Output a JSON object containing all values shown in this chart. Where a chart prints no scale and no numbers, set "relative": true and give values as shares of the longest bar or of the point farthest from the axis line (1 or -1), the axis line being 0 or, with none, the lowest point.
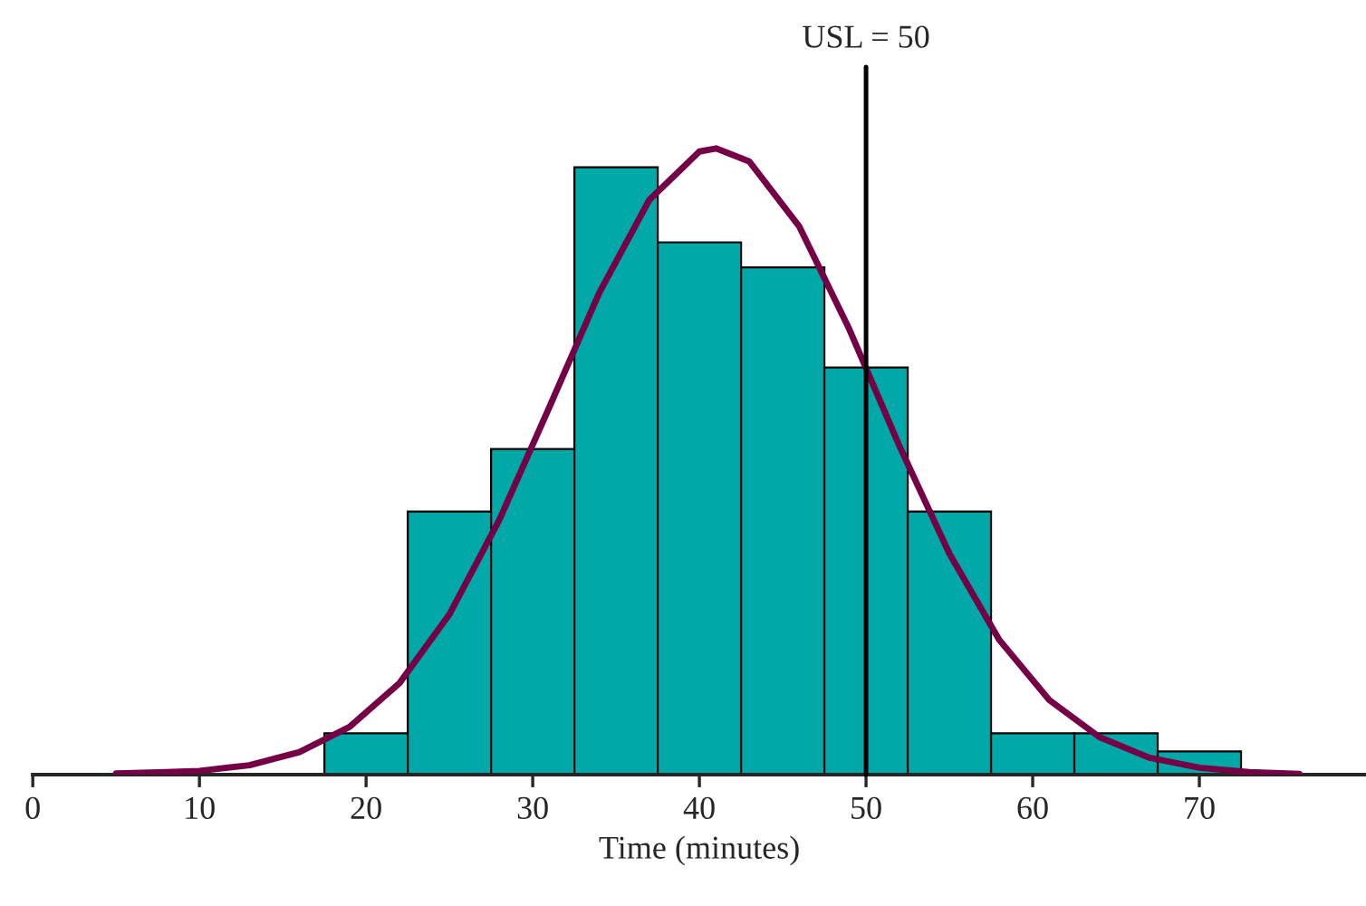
{
  "chart_data": {
    "type": "histogram",
    "relative": true,
    "xlabel": "Time (minutes)",
    "bins": [
      17.5,
      22.5,
      27.5,
      32.5,
      37.5,
      42.5,
      47.5,
      52.5,
      57.5,
      62.5,
      67.5,
      72.5
    ],
    "values": [
      0.066,
      0.42,
      0.52,
      0.97,
      0.85,
      0.81,
      0.65,
      0.42,
      0.066,
      0.066,
      0.037
    ],
    "color": "#00a8a8",
    "series": [
      {
        "type": "line",
        "color": "#750046",
        "x": [
          5,
          8,
          10,
          13,
          16,
          19,
          22,
          25,
          28,
          31,
          34,
          37,
          40,
          41,
          43,
          46,
          49,
          52,
          55,
          58,
          61,
          64,
          67,
          70,
          73,
          76
        ],
        "values": [
          0.002,
          0.004,
          0.006,
          0.015,
          0.036,
          0.076,
          0.146,
          0.256,
          0.407,
          0.587,
          0.77,
          0.918,
          0.995,
          1,
          0.979,
          0.875,
          0.711,
          0.525,
          0.353,
          0.215,
          0.119,
          0.06,
          0.027,
          0.011,
          0.004,
          0.001
        ]
      }
    ],
    "xlim": [
      0,
      80
    ],
    "xticks": [
      0,
      10,
      20,
      30,
      40,
      50,
      60,
      70
    ],
    "ref_lines": [
      {
        "axis": "x",
        "value": 50,
        "label": "USL = 50",
        "color": "#000000"
      }
    ],
    "grid": false
  }
}
